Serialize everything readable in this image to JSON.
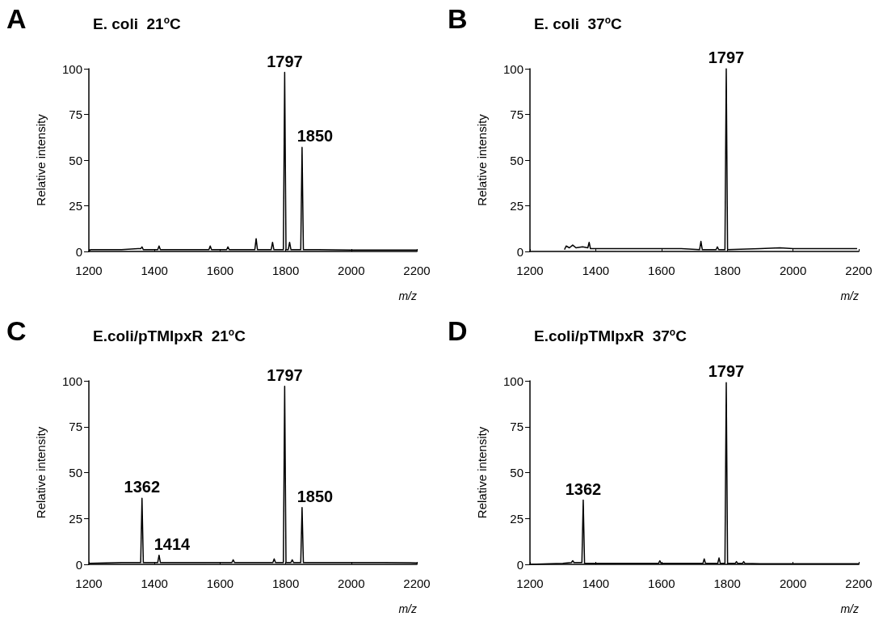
{
  "chart_data": [
    {
      "type": "line",
      "title": "E. coli  21$^{o}$C",
      "xlabel": "m/z",
      "ylabel": "Relative intensity",
      "color": "#000000",
      "marker": "none",
      "annotations": [
        "A",
        {
          "text": "1797",
          "x": 1797,
          "y": 98
        },
        {
          "text": "1850",
          "x": 1850,
          "y": 57
        }
      ],
      "x": [
        1200,
        1205,
        1250,
        1300,
        1350,
        1358,
        1362,
        1366,
        1410,
        1414,
        1418,
        1500,
        1566,
        1570,
        1574,
        1620,
        1624,
        1628,
        1706,
        1710,
        1714,
        1756,
        1760,
        1764,
        1793,
        1797,
        1801,
        1808,
        1812,
        1816,
        1846,
        1850,
        1854,
        1900,
        2000,
        2100,
        2200
      ],
      "values": [
        0,
        1,
        1,
        1,
        1.5,
        1.5,
        2.5,
        1,
        1,
        3,
        1,
        1,
        1,
        3,
        1,
        1,
        2.5,
        1,
        1,
        7,
        1,
        1,
        5,
        1,
        1,
        98,
        1,
        1,
        5,
        1,
        1,
        57,
        1,
        1,
        0.8,
        0.8,
        0.8
      ],
      "xlim": [
        1200,
        2200
      ],
      "xticks": [
        1200,
        1400,
        1600,
        1800,
        2000,
        2200
      ],
      "ylim": [
        0,
        100
      ],
      "yticks": [
        0,
        25,
        50,
        75,
        100
      ]
    },
    {
      "type": "line",
      "title": "E. coli  37$^{o}$C",
      "xlabel": "m/z",
      "ylabel": "Relative intensity",
      "color": "#000000",
      "marker": "none",
      "annotations": [
        "B",
        {
          "text": "1797",
          "x": 1797,
          "y": 100
        }
      ],
      "x": [
        1305,
        1310,
        1320,
        1330,
        1340,
        1360,
        1376,
        1380,
        1384,
        1450,
        1500,
        1600,
        1660,
        1716,
        1720,
        1724,
        1766,
        1770,
        1774,
        1793,
        1797,
        1801,
        1900,
        1960,
        2000,
        2100,
        2195
      ],
      "values": [
        1,
        3,
        2,
        3.5,
        2,
        2.5,
        2,
        5,
        1.5,
        1.5,
        1.5,
        1.5,
        1.5,
        1,
        5.5,
        1,
        1,
        2.5,
        1,
        1,
        100,
        1,
        1.5,
        2,
        1.5,
        1.5,
        1.5
      ],
      "xlim": [
        1200,
        2200
      ],
      "xticks": [
        1200,
        1400,
        1600,
        1800,
        2000,
        2200
      ],
      "ylim": [
        0,
        100
      ],
      "yticks": [
        0,
        25,
        50,
        75,
        100
      ]
    },
    {
      "type": "line",
      "title": "E.coli/pTMlpxR  21$^{o}$C",
      "xlabel": "m/z",
      "ylabel": "Relative intensity",
      "color": "#000000",
      "marker": "none",
      "annotations": [
        "C",
        {
          "text": "1362",
          "x": 1362,
          "y": 36
        },
        {
          "text": "1414",
          "x": 1414,
          "y": 5
        },
        {
          "text": "1797",
          "x": 1797,
          "y": 97
        },
        {
          "text": "1850",
          "x": 1850,
          "y": 31
        }
      ],
      "x": [
        1200,
        1300,
        1358,
        1362,
        1366,
        1410,
        1414,
        1418,
        1500,
        1600,
        1636,
        1640,
        1644,
        1700,
        1761,
        1765,
        1769,
        1793,
        1797,
        1801,
        1816,
        1820,
        1824,
        1846,
        1850,
        1854,
        1950,
        2100,
        2200
      ],
      "values": [
        0.5,
        1,
        1,
        36,
        1,
        1,
        5,
        1,
        1,
        1,
        1,
        2.5,
        1,
        1,
        1,
        3,
        1,
        1,
        97,
        1,
        1,
        2.5,
        1,
        1,
        31,
        1,
        1,
        1,
        0.8
      ],
      "xlim": [
        1200,
        2200
      ],
      "xticks": [
        1200,
        1400,
        1600,
        1800,
        2000,
        2200
      ],
      "ylim": [
        0,
        100
      ],
      "yticks": [
        0,
        25,
        50,
        75,
        100
      ]
    },
    {
      "type": "line",
      "title": "E.coli/pTMlpxR  37$^{o}$C",
      "xlabel": "m/z",
      "ylabel": "Relative intensity",
      "color": "#000000",
      "marker": "none",
      "annotations": [
        "D",
        {
          "text": "1362",
          "x": 1362,
          "y": 35
        },
        {
          "text": "1797",
          "x": 1797,
          "y": 99
        }
      ],
      "x": [
        1200,
        1300,
        1326,
        1330,
        1334,
        1358,
        1362,
        1366,
        1450,
        1591,
        1595,
        1599,
        1726,
        1730,
        1734,
        1771,
        1775,
        1779,
        1793,
        1797,
        1801,
        1824,
        1828,
        1832,
        1846,
        1850,
        1854,
        1900,
        2200
      ],
      "values": [
        0,
        0.5,
        1,
        2,
        1,
        1,
        35,
        0.5,
        0.5,
        0.5,
        2,
        0.5,
        0.5,
        3,
        0.5,
        0.5,
        3.5,
        0.5,
        0.5,
        99,
        0.5,
        0.5,
        1.5,
        0.5,
        0.5,
        1.5,
        0.5,
        0.3,
        0.3
      ],
      "xlim": [
        1200,
        2200
      ],
      "xticks": [
        1200,
        1400,
        1600,
        1800,
        2000,
        2200
      ],
      "ylim": [
        0,
        100
      ],
      "yticks": [
        0,
        25,
        50,
        75,
        100
      ]
    }
  ]
}
